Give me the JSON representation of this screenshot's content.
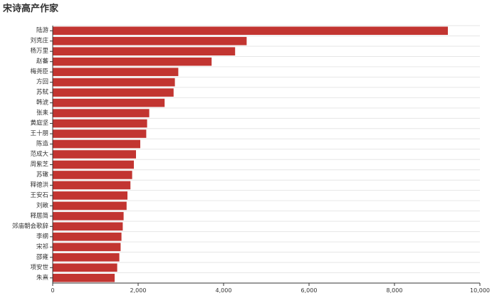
{
  "chart_data": {
    "type": "bar",
    "orientation": "horizontal",
    "title": "宋诗高产作家",
    "xlabel": "",
    "ylabel": "",
    "xlim": [
      0,
      10000
    ],
    "xticks": [
      0,
      2000,
      4000,
      6000,
      8000,
      10000
    ],
    "xtick_labels": [
      "0",
      "2,000",
      "4,000",
      "6,000",
      "8,000",
      "10,000"
    ],
    "grid": true,
    "legend": "none",
    "bar_color": "#c23531",
    "categories": [
      "陆游",
      "刘克庄",
      "杨万里",
      "赵蕃",
      "梅尧臣",
      "方回",
      "苏轼",
      "韩淲",
      "张耒",
      "黄庭坚",
      "王十朋",
      "陈造",
      "范成大",
      "周紫芝",
      "苏辙",
      "释德洪",
      "王安石",
      "刘敞",
      "释居简",
      "郊庙朝会歌辞",
      "李纲",
      "宋祁",
      "邵雍",
      "项安世",
      "朱熹"
    ],
    "values": [
      9250,
      4540,
      4270,
      3720,
      2940,
      2860,
      2830,
      2620,
      2260,
      2210,
      2190,
      2050,
      1950,
      1900,
      1860,
      1820,
      1750,
      1730,
      1660,
      1640,
      1610,
      1590,
      1560,
      1510,
      1450
    ]
  }
}
